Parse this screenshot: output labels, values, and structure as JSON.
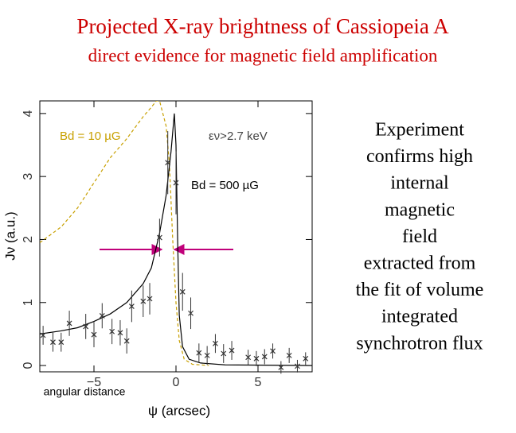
{
  "slide": {
    "title": "Projected X-ray brightness of Cassiopeia A",
    "subtitle": "direct evidence for magnetic field amplification",
    "side_text": [
      "Experiment",
      "confirms high",
      "internal",
      "magnetic",
      "field",
      "extracted from",
      "the fit of volume",
      "integrated",
      "synchrotron flux"
    ]
  },
  "chart_data": {
    "type": "line",
    "xlabel": "ψ (arcsec)",
    "ylabel": "Jν (a.u.)",
    "annotations": [
      "εν>2.7 keV",
      "angular distance"
    ],
    "xlim": [
      -8.3,
      8.3
    ],
    "ylim": [
      -0.1,
      4.2
    ],
    "xticks": [
      {
        "value": -5,
        "label": "−5"
      },
      0,
      5
    ],
    "yticks": [
      0,
      1,
      2,
      3,
      4
    ],
    "series": [
      {
        "name": "Bd = 10 µG",
        "color": "#c8a000",
        "dashed": true,
        "x": [
          -8.3,
          -7,
          -6,
          -5,
          -4,
          -3,
          -2,
          -1.5,
          -1.2,
          -1.0,
          -0.8,
          -0.6,
          -0.4,
          -0.2,
          0,
          0.2,
          0.5,
          1,
          2
        ],
        "values": [
          1.95,
          2.2,
          2.5,
          2.9,
          3.3,
          3.6,
          3.95,
          4.1,
          4.2,
          4.2,
          4.0,
          3.8,
          3.2,
          2.0,
          1.0,
          0.4,
          0.1,
          0.02,
          0
        ]
      },
      {
        "name": "Bd = 500 µG",
        "color": "#000000",
        "dashed": false,
        "x": [
          -8.3,
          -7,
          -6,
          -5,
          -4,
          -3,
          -2,
          -1.5,
          -1,
          -0.6,
          -0.3,
          -0.1,
          0,
          0.1,
          0.2,
          0.4,
          0.8,
          1.5,
          3,
          8.3
        ],
        "values": [
          0.5,
          0.55,
          0.6,
          0.7,
          0.82,
          1.0,
          1.3,
          1.55,
          2.1,
          2.7,
          3.4,
          4.0,
          3.5,
          2.0,
          0.8,
          0.3,
          0.1,
          0.04,
          0.01,
          0
        ]
      }
    ],
    "points": {
      "color": "#333333",
      "x": [
        -8.1,
        -7.5,
        -7.0,
        -6.5,
        -5.5,
        -5.0,
        -4.5,
        -3.9,
        -3.4,
        -3.0,
        -2.7,
        -2.0,
        -1.6,
        -1.0,
        -0.5,
        0,
        0.4,
        0.9,
        1.4,
        1.9,
        2.4,
        2.9,
        3.4,
        4.4,
        4.9,
        5.4,
        5.9,
        6.4,
        6.9,
        7.4,
        7.9
      ],
      "values": [
        0.48,
        0.37,
        0.37,
        0.67,
        0.62,
        0.49,
        0.79,
        0.54,
        0.52,
        0.39,
        0.94,
        1.02,
        1.06,
        2.03,
        3.22,
        2.9,
        1.17,
        0.83,
        0.2,
        0.16,
        0.35,
        0.19,
        0.24,
        0.13,
        0.11,
        0.14,
        0.23,
        -0.03,
        0.16,
        -0.01,
        0.11
      ],
      "errors": [
        0.15,
        0.15,
        0.15,
        0.2,
        0.2,
        0.2,
        0.2,
        0.2,
        0.2,
        0.2,
        0.25,
        0.25,
        0.25,
        0.3,
        0.5,
        0.5,
        0.3,
        0.25,
        0.15,
        0.15,
        0.15,
        0.15,
        0.15,
        0.12,
        0.12,
        0.12,
        0.12,
        0.1,
        0.12,
        0.1,
        0.1
      ]
    }
  }
}
